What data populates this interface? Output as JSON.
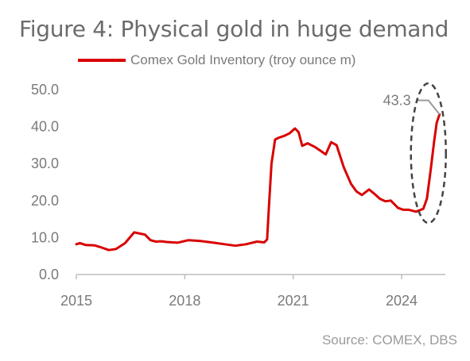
{
  "title": "Figure 4: Physical gold in huge demand",
  "source": "Source: COMEX, DBS",
  "colors": {
    "series": "#d90000",
    "axis": "#bdbdbd",
    "text": "#7a7a7a",
    "ellipse": "#444444",
    "callout_line": "#9a9a9a"
  },
  "chart_data": {
    "type": "line",
    "title": "Figure 4: Physical gold in huge demand",
    "xlabel": "",
    "ylabel": "",
    "ylim": [
      0,
      50
    ],
    "xlim": [
      2015,
      2025.2
    ],
    "yticks": [
      0,
      10,
      20,
      30,
      40,
      50
    ],
    "ytick_labels": [
      "0.0",
      "10.0",
      "20.0",
      "30.0",
      "40.0",
      "50.0"
    ],
    "xticks": [
      2015,
      2018,
      2021,
      2024
    ],
    "xtick_labels": [
      "2015",
      "2018",
      "2021",
      "2024"
    ],
    "grid": false,
    "legend_position": "top",
    "series": [
      {
        "name": "Comex Gold Inventory (troy ounce m)",
        "x": [
          2015.0,
          2015.1,
          2015.25,
          2015.5,
          2015.7,
          2015.9,
          2016.1,
          2016.35,
          2016.6,
          2016.9,
          2017.05,
          2017.2,
          2017.35,
          2017.5,
          2017.8,
          2018.1,
          2018.4,
          2018.8,
          2019.1,
          2019.4,
          2019.7,
          2020.0,
          2020.2,
          2020.28,
          2020.32,
          2020.4,
          2020.5,
          2020.6,
          2020.75,
          2020.9,
          2021.05,
          2021.15,
          2021.25,
          2021.4,
          2021.6,
          2021.75,
          2021.9,
          2022.05,
          2022.2,
          2022.4,
          2022.6,
          2022.75,
          2022.9,
          2023.1,
          2023.25,
          2023.4,
          2023.55,
          2023.7,
          2023.9,
          2024.05,
          2024.2,
          2024.4,
          2024.6,
          2024.7,
          2024.8,
          2024.9,
          2024.97,
          2025.05
        ],
        "values": [
          8.2,
          8.5,
          8.0,
          7.9,
          7.3,
          6.6,
          6.9,
          8.5,
          11.4,
          10.8,
          9.3,
          8.9,
          9.0,
          8.8,
          8.6,
          9.3,
          9.1,
          8.6,
          8.2,
          7.8,
          8.2,
          8.9,
          8.7,
          9.5,
          17.0,
          30.0,
          36.5,
          37.0,
          37.5,
          38.2,
          39.5,
          38.5,
          34.8,
          35.5,
          34.5,
          33.5,
          32.5,
          35.8,
          35.0,
          29.0,
          24.5,
          22.5,
          21.5,
          23.0,
          21.8,
          20.5,
          19.8,
          20.0,
          18.0,
          17.5,
          17.5,
          17.0,
          17.8,
          20.5,
          28.0,
          36.0,
          41.0,
          43.3
        ]
      }
    ],
    "annotations": [
      {
        "text": "43.3",
        "x": 2025.05,
        "y": 43.3
      }
    ]
  }
}
